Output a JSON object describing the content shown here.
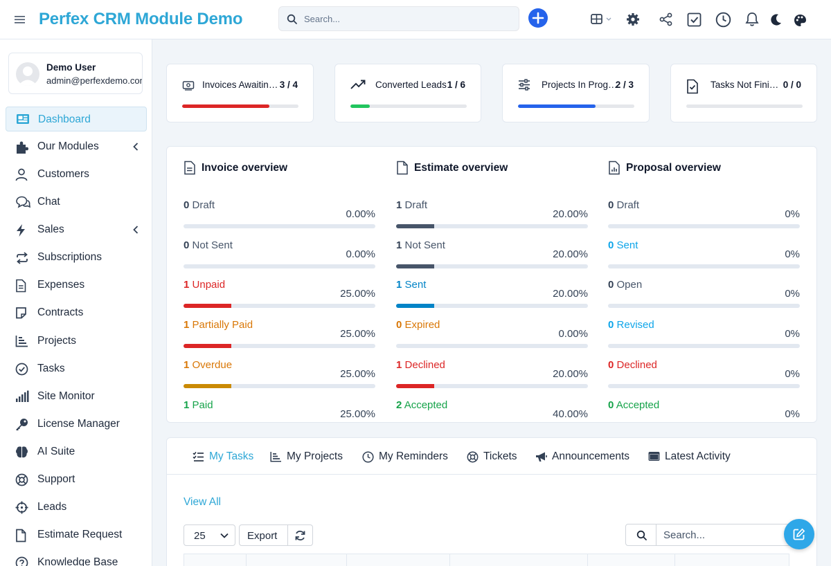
{
  "header": {
    "brand": "Perfex CRM Module Demo",
    "search_placeholder": "Search..."
  },
  "profile": {
    "name": "Demo User",
    "email": "admin@perfexdemo.com"
  },
  "sidebar": {
    "items": [
      {
        "label": "Dashboard",
        "icon": "dashboard-icon",
        "active": true
      },
      {
        "label": "Our Modules",
        "icon": "puzzle-icon",
        "chevron": true
      },
      {
        "label": "Customers",
        "icon": "user-icon"
      },
      {
        "label": "Chat",
        "icon": "chat-icon"
      },
      {
        "label": "Sales",
        "icon": "bolt-icon",
        "chevron": true
      },
      {
        "label": "Subscriptions",
        "icon": "repeat-icon"
      },
      {
        "label": "Expenses",
        "icon": "file-lines-icon"
      },
      {
        "label": "Contracts",
        "icon": "note-icon"
      },
      {
        "label": "Projects",
        "icon": "bar-chart-icon"
      },
      {
        "label": "Tasks",
        "icon": "check-circle-icon"
      },
      {
        "label": "Site Monitor",
        "icon": "signal-icon"
      },
      {
        "label": "License Manager",
        "icon": "key-icon"
      },
      {
        "label": "AI Suite",
        "icon": "brain-icon"
      },
      {
        "label": "Support",
        "icon": "lifebuoy-icon"
      },
      {
        "label": "Leads",
        "icon": "crosshair-icon"
      },
      {
        "label": "Estimate Request",
        "icon": "file-icon"
      },
      {
        "label": "Knowledge Base",
        "icon": "question-icon"
      }
    ]
  },
  "stats": [
    {
      "label": "Invoices Awaiting Payment",
      "value": "3 / 4",
      "progress": 0.75,
      "color": "#dc2626",
      "icon": "invoice-icon"
    },
    {
      "label": "Converted Leads",
      "value": "1 / 6",
      "progress": 0.1667,
      "color": "#22c55e",
      "icon": "trend-up-icon"
    },
    {
      "label": "Projects In Progress",
      "value": "2 / 3",
      "progress": 0.6667,
      "color": "#2563eb",
      "icon": "sliders-icon"
    },
    {
      "label": "Tasks Not Finished",
      "value": "0 / 0",
      "progress": 0,
      "color": "#22c55e",
      "icon": "file-check-icon"
    }
  ],
  "overview": [
    {
      "title": "Invoice overview",
      "rows": [
        {
          "count": "0",
          "label": "Draft",
          "pct": "0.00%",
          "progress": 0,
          "color": "#475569",
          "fill": "#475569"
        },
        {
          "count": "0",
          "label": "Not Sent",
          "pct": "0.00%",
          "progress": 0,
          "color": "#475569",
          "fill": "#475569"
        },
        {
          "count": "1",
          "label": "Unpaid",
          "pct": "25.00%",
          "progress": 0.25,
          "color": "#dc2626",
          "fill": "#dc2626"
        },
        {
          "count": "1",
          "label": "Partially Paid",
          "pct": "25.00%",
          "progress": 0.25,
          "color": "#d97706",
          "fill": "#dc2626"
        },
        {
          "count": "1",
          "label": "Overdue",
          "pct": "25.00%",
          "progress": 0.25,
          "color": "#d97706",
          "fill": "#ca8a04"
        },
        {
          "count": "1",
          "label": "Paid",
          "pct": "25.00%",
          "progress": 0.25,
          "color": "#16a34a",
          "fill": "#22c55e"
        }
      ]
    },
    {
      "title": "Estimate overview",
      "rows": [
        {
          "count": "1",
          "label": "Draft",
          "pct": "20.00%",
          "progress": 0.2,
          "color": "#475569",
          "fill": "#475569"
        },
        {
          "count": "1",
          "label": "Not Sent",
          "pct": "20.00%",
          "progress": 0.2,
          "color": "#475569",
          "fill": "#475569"
        },
        {
          "count": "1",
          "label": "Sent",
          "pct": "20.00%",
          "progress": 0.2,
          "color": "#0284c7",
          "fill": "#0284c7"
        },
        {
          "count": "0",
          "label": "Expired",
          "pct": "0.00%",
          "progress": 0,
          "color": "#d97706",
          "fill": "#d97706"
        },
        {
          "count": "1",
          "label": "Declined",
          "pct": "20.00%",
          "progress": 0.2,
          "color": "#dc2626",
          "fill": "#dc2626"
        },
        {
          "count": "2",
          "label": "Accepted",
          "pct": "40.00%",
          "progress": 0.4,
          "color": "#16a34a",
          "fill": "#22c55e"
        }
      ]
    },
    {
      "title": "Proposal overview",
      "rows": [
        {
          "count": "0",
          "label": "Draft",
          "pct": "0%",
          "progress": 0,
          "color": "#475569",
          "fill": "#475569"
        },
        {
          "count": "0",
          "label": "Sent",
          "pct": "0%",
          "progress": 0,
          "color": "#0ea5e9",
          "fill": "#0ea5e9"
        },
        {
          "count": "0",
          "label": "Open",
          "pct": "0%",
          "progress": 0,
          "color": "#475569",
          "fill": "#475569"
        },
        {
          "count": "0",
          "label": "Revised",
          "pct": "0%",
          "progress": 0,
          "color": "#0ea5e9",
          "fill": "#0ea5e9"
        },
        {
          "count": "0",
          "label": "Declined",
          "pct": "0%",
          "progress": 0,
          "color": "#dc2626",
          "fill": "#dc2626"
        },
        {
          "count": "0",
          "label": "Accepted",
          "pct": "0%",
          "progress": 0,
          "color": "#16a34a",
          "fill": "#22c55e"
        }
      ]
    }
  ],
  "tabs": [
    {
      "label": "My Tasks",
      "icon": "list-check-icon",
      "active": true
    },
    {
      "label": "My Projects",
      "icon": "bar-chart-icon"
    },
    {
      "label": "My Reminders",
      "icon": "clock-icon"
    },
    {
      "label": "Tickets",
      "icon": "lifebuoy-icon"
    },
    {
      "label": "Announcements",
      "icon": "megaphone-icon"
    },
    {
      "label": "Latest Activity",
      "icon": "window-icon"
    }
  ],
  "tasks_panel": {
    "view_all": "View All",
    "page_size": "25",
    "export_label": "Export",
    "search_placeholder": "Search..."
  },
  "colors": {
    "brand": "#2ea7d6",
    "primary": "#2563eb"
  }
}
